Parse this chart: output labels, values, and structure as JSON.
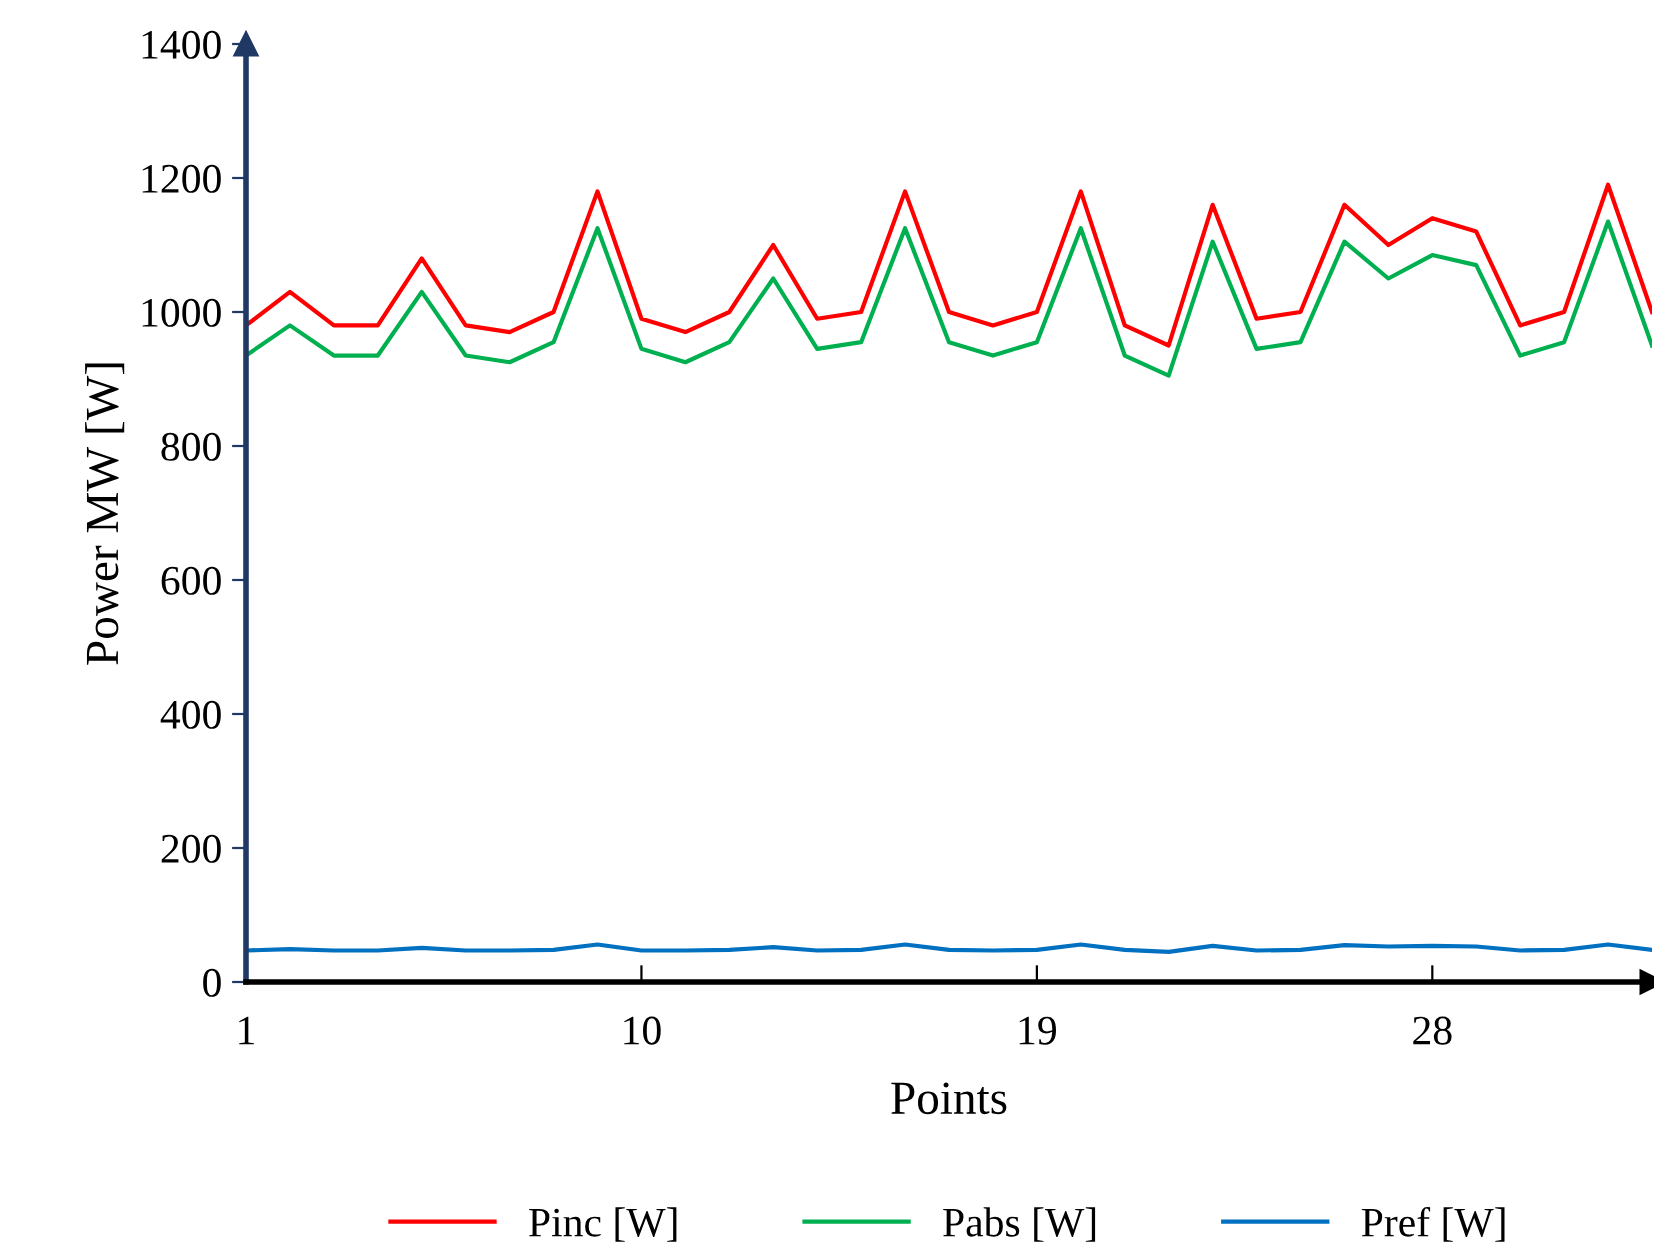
{
  "chart_data": {
    "type": "line",
    "xlabel": "Points",
    "ylabel": "Power MW [W]",
    "x": [
      1,
      2,
      3,
      4,
      5,
      6,
      7,
      8,
      9,
      10,
      11,
      12,
      13,
      14,
      15,
      16,
      17,
      18,
      19,
      20,
      21,
      22,
      23,
      24,
      25,
      26,
      27,
      28,
      29,
      30,
      31,
      32,
      33
    ],
    "xlim": [
      1,
      33
    ],
    "xticks": [
      1,
      10,
      19,
      28
    ],
    "ylim": [
      0,
      1400
    ],
    "yticks": [
      0,
      200,
      400,
      600,
      800,
      1000,
      1200,
      1400
    ],
    "grid": false,
    "legend": "bottom",
    "marker": "none",
    "line_style": "solid",
    "series": [
      {
        "name": "Pinc [W]",
        "color": "#ff0000",
        "values": [
          980,
          1030,
          980,
          980,
          1080,
          980,
          970,
          1000,
          1180,
          990,
          970,
          1000,
          1100,
          990,
          1000,
          1180,
          1000,
          980,
          1000,
          1180,
          980,
          950,
          1160,
          990,
          1000,
          1160,
          1100,
          1140,
          1120,
          980,
          1000,
          1190,
          1000
        ]
      },
      {
        "name": "Pabs [W]",
        "color": "#00b050",
        "values": [
          935,
          980,
          935,
          935,
          1030,
          935,
          925,
          955,
          1125,
          945,
          925,
          955,
          1050,
          945,
          955,
          1125,
          955,
          935,
          955,
          1125,
          935,
          905,
          1105,
          945,
          955,
          1105,
          1050,
          1085,
          1070,
          935,
          955,
          1135,
          950
        ]
      },
      {
        "name": "Pref [W]",
        "color": "#0070c0",
        "values": [
          47,
          49,
          47,
          47,
          51,
          47,
          47,
          48,
          56,
          47,
          47,
          48,
          52,
          47,
          48,
          56,
          48,
          47,
          48,
          56,
          48,
          45,
          54,
          47,
          48,
          55,
          53,
          54,
          53,
          47,
          48,
          56,
          48
        ]
      }
    ]
  }
}
